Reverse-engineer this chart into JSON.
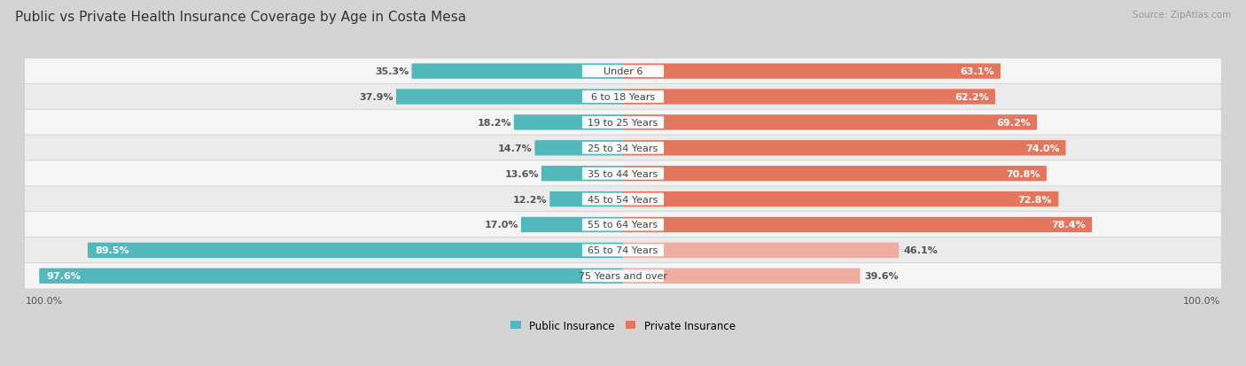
{
  "title": "Public vs Private Health Insurance Coverage by Age in Costa Mesa",
  "source": "Source: ZipAtlas.com",
  "categories": [
    "Under 6",
    "6 to 18 Years",
    "19 to 25 Years",
    "25 to 34 Years",
    "35 to 44 Years",
    "45 to 54 Years",
    "55 to 64 Years",
    "65 to 74 Years",
    "75 Years and over"
  ],
  "public_values": [
    35.3,
    37.9,
    18.2,
    14.7,
    13.6,
    12.2,
    17.0,
    89.5,
    97.6
  ],
  "private_values": [
    63.1,
    62.2,
    69.2,
    74.0,
    70.8,
    72.8,
    78.4,
    46.1,
    39.6
  ],
  "public_color": "#52b8bb",
  "private_color_dark": "#e5765e",
  "private_color_light": "#f0aca0",
  "row_bg_colors": [
    "#f5f5f5",
    "#ebebeb"
  ],
  "background_color": "#d4d4d4",
  "legend_public": "Public Insurance",
  "legend_private": "Private Insurance",
  "title_fontsize": 11,
  "source_fontsize": 7.5,
  "value_fontsize": 8,
  "category_fontsize": 8,
  "axis_label_fontsize": 8
}
